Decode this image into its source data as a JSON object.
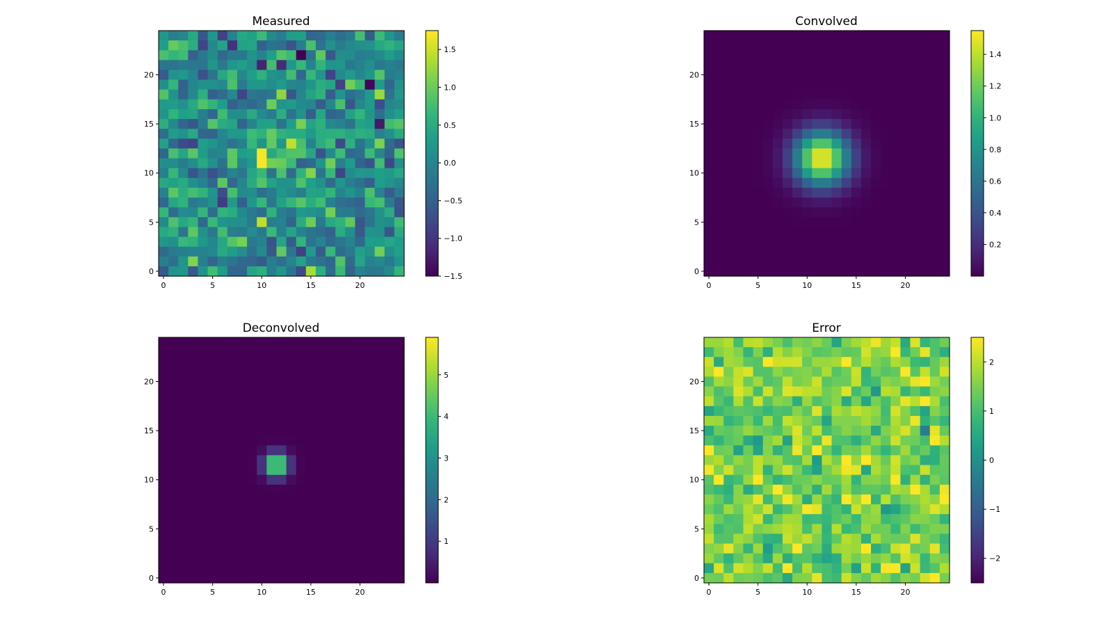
{
  "figure": {
    "background": "#ffffff"
  },
  "chart_data": [
    {
      "type": "heatmap",
      "title": "Measured",
      "grid_size": 25,
      "field": "noise",
      "value_range": [
        -1.5,
        1.75
      ],
      "colormap": "viridis",
      "xticks": [
        0,
        5,
        10,
        15,
        20
      ],
      "yticks": [
        0,
        5,
        10,
        15,
        20
      ],
      "colorbar_ticks": [
        1.5,
        1.0,
        0.5,
        0.0,
        -0.5,
        -1.0,
        -1.5
      ],
      "colorbar_labels": [
        "1.5",
        "1.0",
        "0.5",
        "0.0",
        "−0.5",
        "−1.0",
        "−1.5"
      ],
      "grid": false
    },
    {
      "type": "heatmap",
      "title": "Convolved",
      "grid_size": 25,
      "field": "blur",
      "value_range": [
        0.0,
        1.55
      ],
      "colormap": "viridis",
      "xticks": [
        0,
        5,
        10,
        15,
        20
      ],
      "yticks": [
        0,
        5,
        10,
        15,
        20
      ],
      "colorbar_ticks": [
        1.4,
        1.2,
        1.0,
        0.8,
        0.6,
        0.4,
        0.2
      ],
      "colorbar_labels": [
        "1.4",
        "1.2",
        "1.0",
        "0.8",
        "0.6",
        "0.4",
        "0.2"
      ],
      "grid": false
    },
    {
      "type": "heatmap",
      "title": "Deconvolved",
      "grid_size": 25,
      "field": "sharp",
      "value_range": [
        0.0,
        5.9
      ],
      "colormap": "viridis",
      "xticks": [
        0,
        5,
        10,
        15,
        20
      ],
      "yticks": [
        0,
        5,
        10,
        15,
        20
      ],
      "colorbar_ticks": [
        5,
        4,
        3,
        2,
        1
      ],
      "colorbar_labels": [
        "5",
        "4",
        "3",
        "2",
        "1"
      ],
      "grid": false
    },
    {
      "type": "heatmap",
      "title": "Error",
      "grid_size": 25,
      "field": "error",
      "value_range": [
        -2.5,
        2.5
      ],
      "colormap": "viridis",
      "xticks": [
        0,
        5,
        10,
        15,
        20
      ],
      "yticks": [
        0,
        5,
        10,
        15,
        20
      ],
      "colorbar_ticks": [
        2,
        1,
        0,
        -1,
        -2
      ],
      "colorbar_labels": [
        "2",
        "1",
        "0",
        "−1",
        "−2"
      ],
      "grid": false
    }
  ]
}
